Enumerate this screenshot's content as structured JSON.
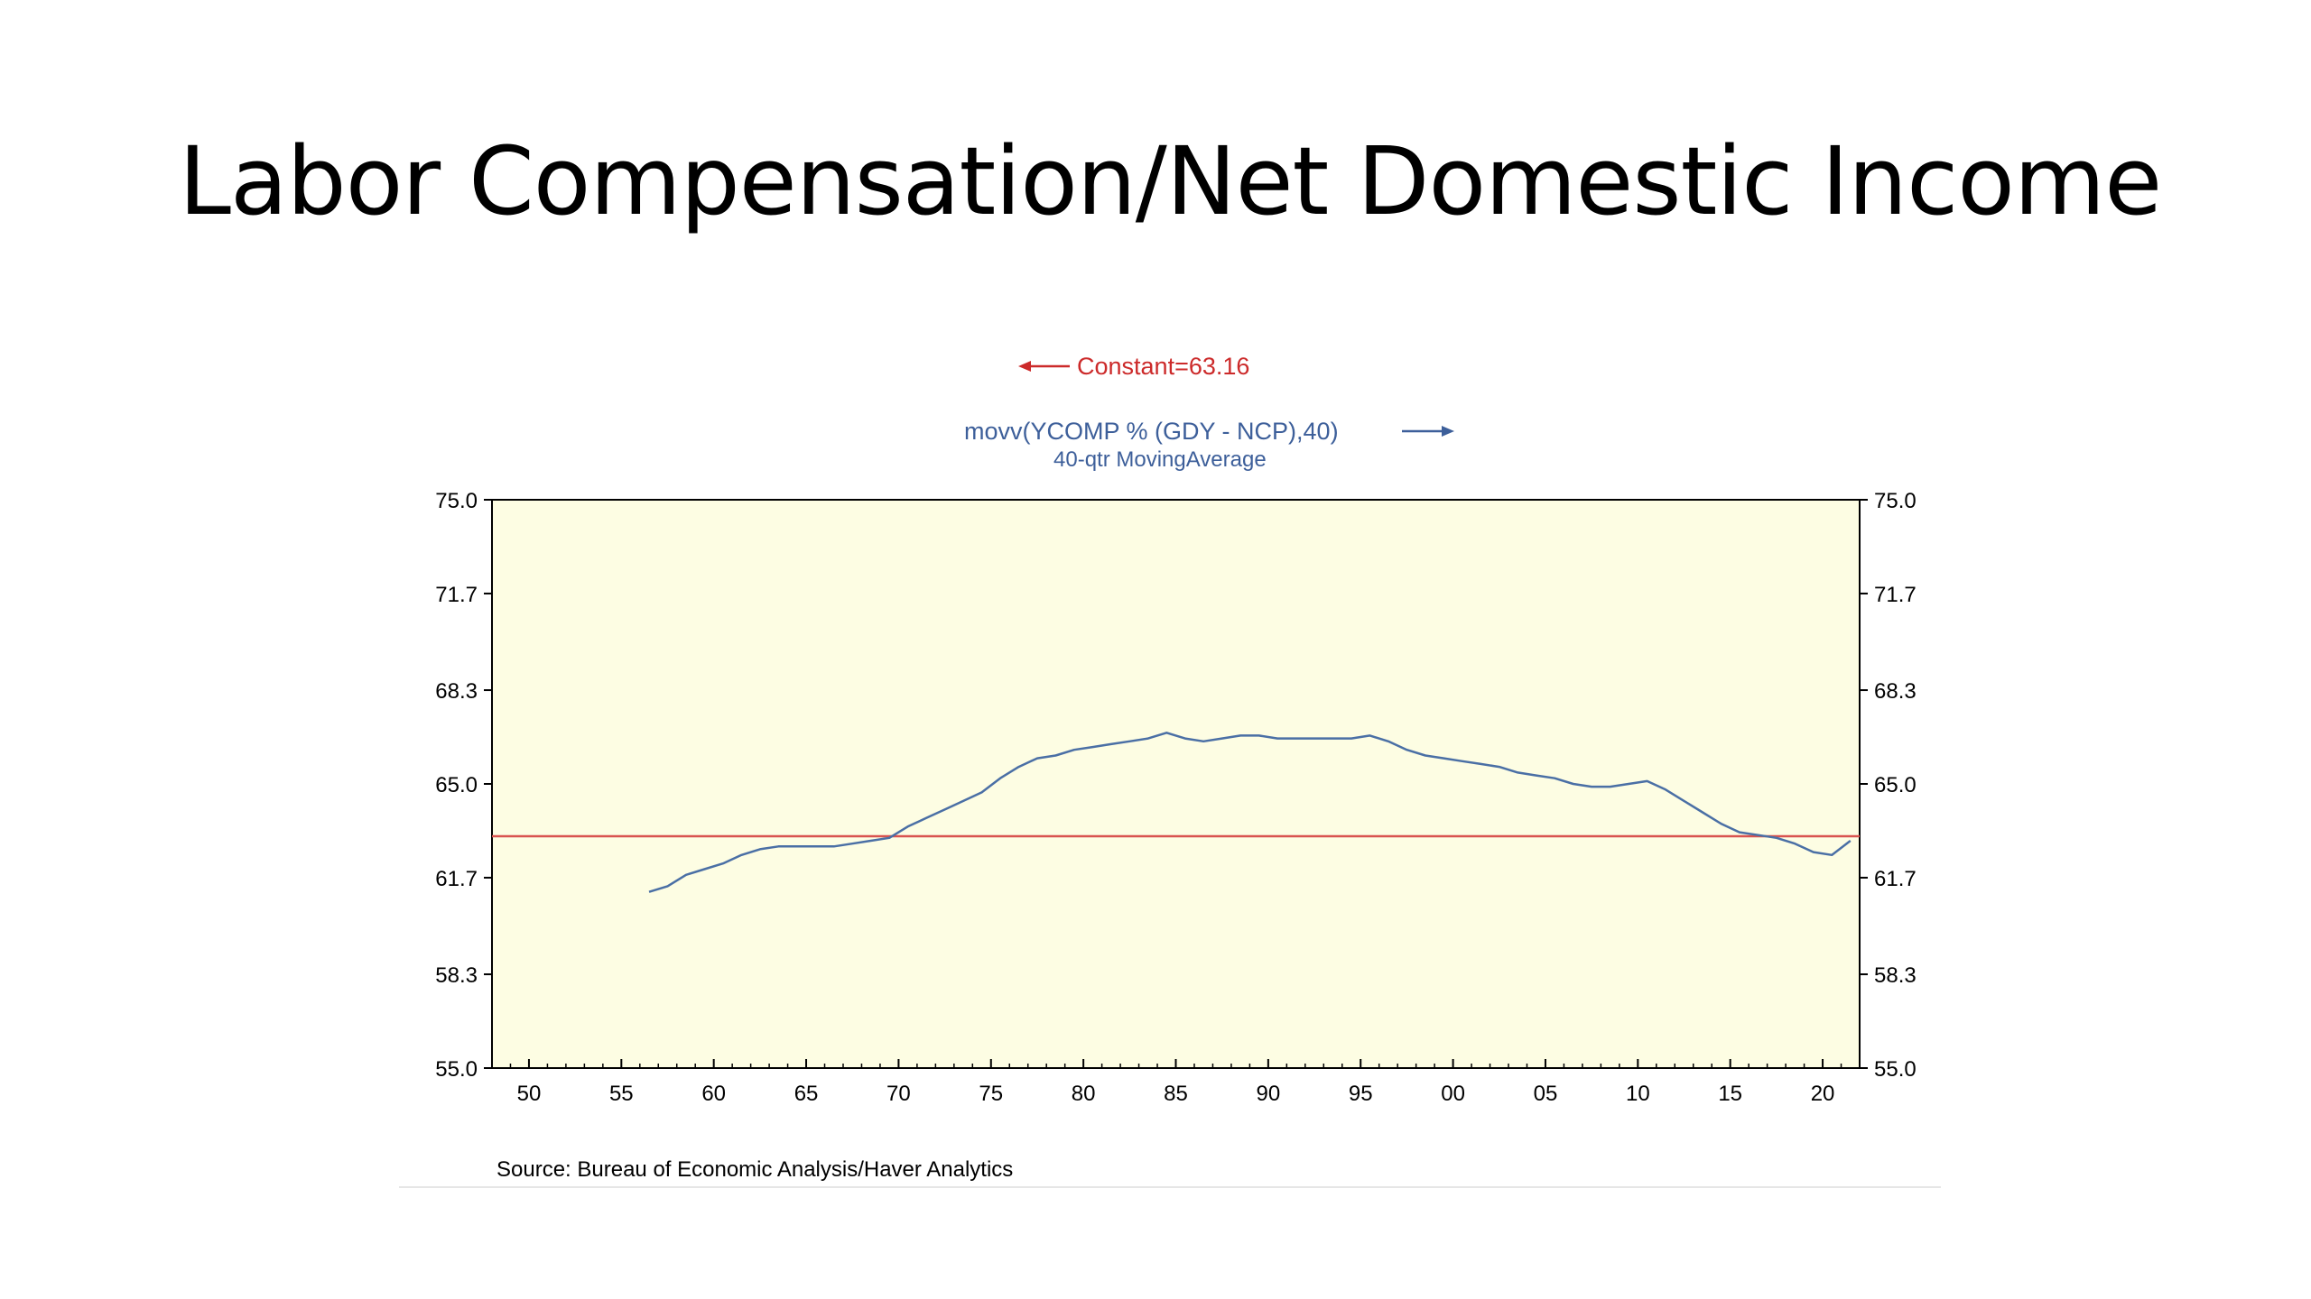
{
  "slide": {
    "title": "Labor Compensation/Net Domestic Income",
    "source": "Source:  Bureau of Economic Analysis/Haver Analytics"
  },
  "colors": {
    "plot_background": "#fdfde3",
    "constant_line": "#d9534f",
    "constant_label": "#cc2a2a",
    "series_line": "#4a6fa5",
    "series_label": "#3d5f9a"
  },
  "chart_data": {
    "type": "line",
    "title": "",
    "xlabel": "",
    "ylabel": "",
    "x_ticks": [
      "50",
      "55",
      "60",
      "65",
      "70",
      "75",
      "80",
      "85",
      "90",
      "95",
      "00",
      "05",
      "10",
      "15",
      "20"
    ],
    "x_tick_years": [
      1950,
      1955,
      1960,
      1965,
      1970,
      1975,
      1980,
      1985,
      1990,
      1995,
      2000,
      2005,
      2010,
      2015,
      2020
    ],
    "xlim": [
      1948,
      2022
    ],
    "y_ticks": [
      "75.0",
      "71.7",
      "68.3",
      "65.0",
      "61.7",
      "58.3",
      "55.0"
    ],
    "y_tick_values": [
      75.0,
      71.7,
      68.3,
      65.0,
      61.7,
      58.3,
      55.0
    ],
    "ylim": [
      55.0,
      75.0
    ],
    "grid": false,
    "legend": [
      {
        "label": "Constant=63.16",
        "axis": "left",
        "color": "#cc2a2a"
      },
      {
        "label": "movv(YCOMP % (GDY - NCP),40)",
        "sublabel": "40-qtr MovingAverage",
        "axis": "right",
        "color": "#3d5f9a"
      }
    ],
    "series": [
      {
        "name": "Constant=63.16",
        "axis": "left",
        "x": [
          1948,
          2022
        ],
        "y": [
          63.16,
          63.16
        ]
      },
      {
        "name": "movv(YCOMP % (GDY - NCP),40)",
        "axis": "right",
        "x": [
          1956.5,
          1957.5,
          1958.5,
          1959.5,
          1960.5,
          1961.5,
          1962.5,
          1963.5,
          1964.5,
          1965.5,
          1966.5,
          1967.5,
          1968.5,
          1969.5,
          1970.5,
          1971.5,
          1972.5,
          1973.5,
          1974.5,
          1975.5,
          1976.5,
          1977.5,
          1978.5,
          1979.5,
          1980.5,
          1981.5,
          1982.5,
          1983.5,
          1984.5,
          1985.5,
          1986.5,
          1987.5,
          1988.5,
          1989.5,
          1990.5,
          1991.5,
          1992.5,
          1993.5,
          1994.5,
          1995.5,
          1996.5,
          1997.5,
          1998.5,
          1999.5,
          2000.5,
          2001.5,
          2002.5,
          2003.5,
          2004.5,
          2005.5,
          2006.5,
          2007.5,
          2008.5,
          2009.5,
          2010.5,
          2011.5,
          2012.5,
          2013.5,
          2014.5,
          2015.5,
          2016.5,
          2017.5,
          2018.5,
          2019.5,
          2020.5,
          2021.5
        ],
        "y": [
          61.2,
          61.4,
          61.8,
          62.0,
          62.2,
          62.5,
          62.7,
          62.8,
          62.8,
          62.8,
          62.8,
          62.9,
          63.0,
          63.1,
          63.5,
          63.8,
          64.1,
          64.4,
          64.7,
          65.2,
          65.6,
          65.9,
          66.0,
          66.2,
          66.3,
          66.4,
          66.5,
          66.6,
          66.8,
          66.6,
          66.5,
          66.6,
          66.7,
          66.7,
          66.6,
          66.6,
          66.6,
          66.6,
          66.6,
          66.7,
          66.5,
          66.2,
          66.0,
          65.9,
          65.8,
          65.7,
          65.6,
          65.4,
          65.3,
          65.2,
          65.0,
          64.9,
          64.9,
          65.0,
          65.1,
          64.8,
          64.4,
          64.0,
          63.6,
          63.3,
          63.2,
          63.1,
          62.9,
          62.6,
          62.5,
          63.0
        ]
      }
    ]
  }
}
